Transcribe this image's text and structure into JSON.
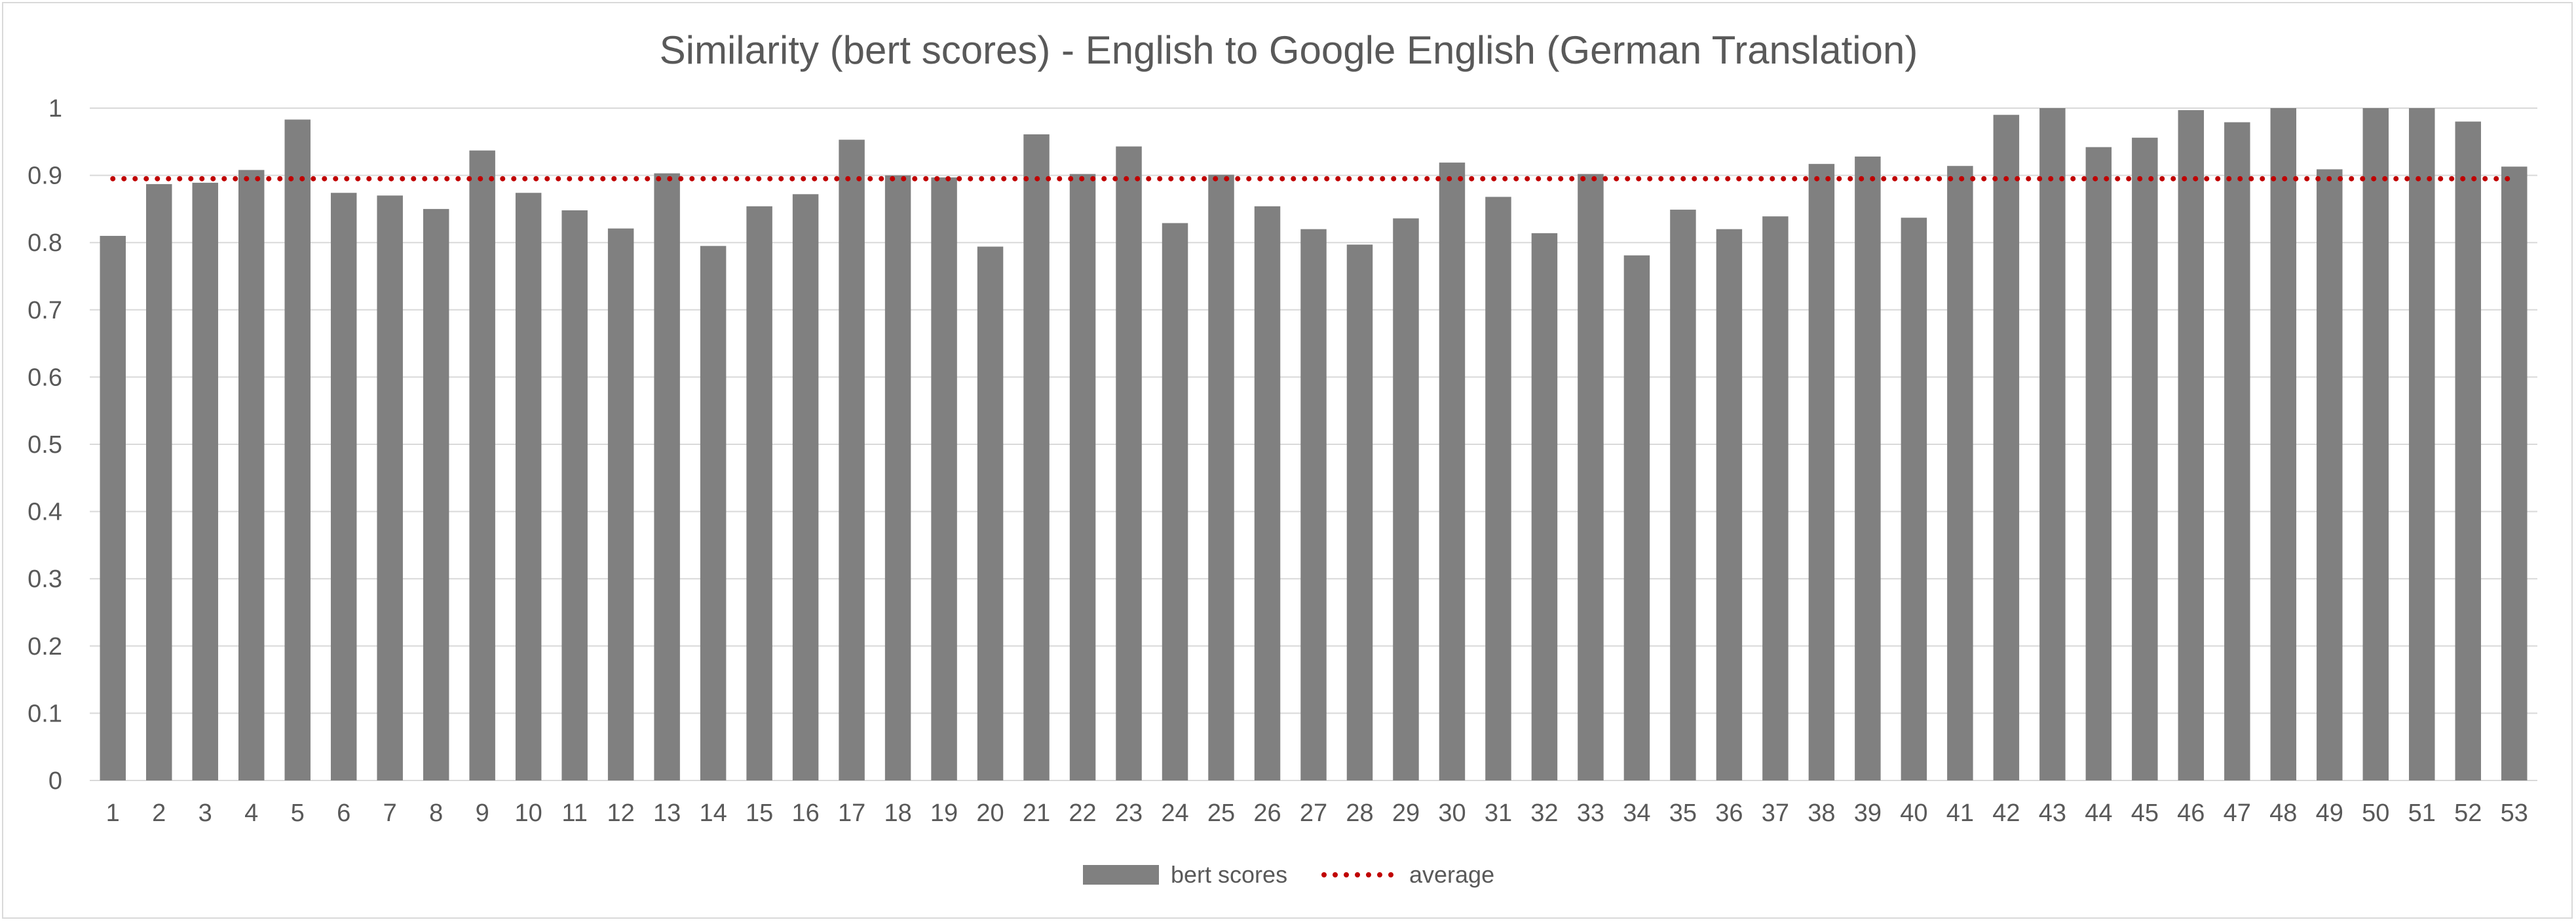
{
  "chart_data": {
    "type": "bar",
    "title": "Similarity (bert scores) - English to Google English (German Translation)",
    "xlabel": "",
    "ylabel": "",
    "ylim": [
      0,
      1
    ],
    "yticks": [
      "0",
      "0.1",
      "0.2",
      "0.3",
      "0.4",
      "0.5",
      "0.6",
      "0.7",
      "0.8",
      "0.9",
      "1"
    ],
    "grid": true,
    "legend_position": "bottom",
    "categories": [
      "1",
      "2",
      "3",
      "4",
      "5",
      "6",
      "7",
      "8",
      "9",
      "10",
      "11",
      "12",
      "13",
      "14",
      "15",
      "16",
      "17",
      "18",
      "19",
      "20",
      "21",
      "22",
      "23",
      "24",
      "25",
      "26",
      "27",
      "28",
      "29",
      "30",
      "31",
      "32",
      "33",
      "34",
      "35",
      "36",
      "37",
      "38",
      "39",
      "40",
      "41",
      "42",
      "43",
      "44",
      "45",
      "46",
      "47",
      "48",
      "49",
      "50",
      "51",
      "52",
      "53"
    ],
    "series": [
      {
        "name": "bert scores",
        "type": "bar",
        "color": "#808080",
        "values": [
          0.81,
          0.887,
          0.889,
          0.908,
          0.983,
          0.874,
          0.87,
          0.85,
          0.937,
          0.874,
          0.848,
          0.821,
          0.903,
          0.795,
          0.854,
          0.872,
          0.953,
          0.9,
          0.897,
          0.794,
          0.961,
          0.902,
          0.943,
          0.829,
          0.901,
          0.854,
          0.82,
          0.797,
          0.836,
          0.919,
          0.868,
          0.814,
          0.902,
          0.781,
          0.849,
          0.82,
          0.839,
          0.917,
          0.928,
          0.837,
          0.914,
          0.99,
          1.0,
          0.942,
          0.956,
          0.997,
          0.979,
          1.0,
          0.909,
          1.0,
          1.0,
          0.98,
          0.913
        ]
      },
      {
        "name": "average",
        "type": "line",
        "style": "dotted",
        "color": "#c00000",
        "value": 0.895
      }
    ]
  }
}
